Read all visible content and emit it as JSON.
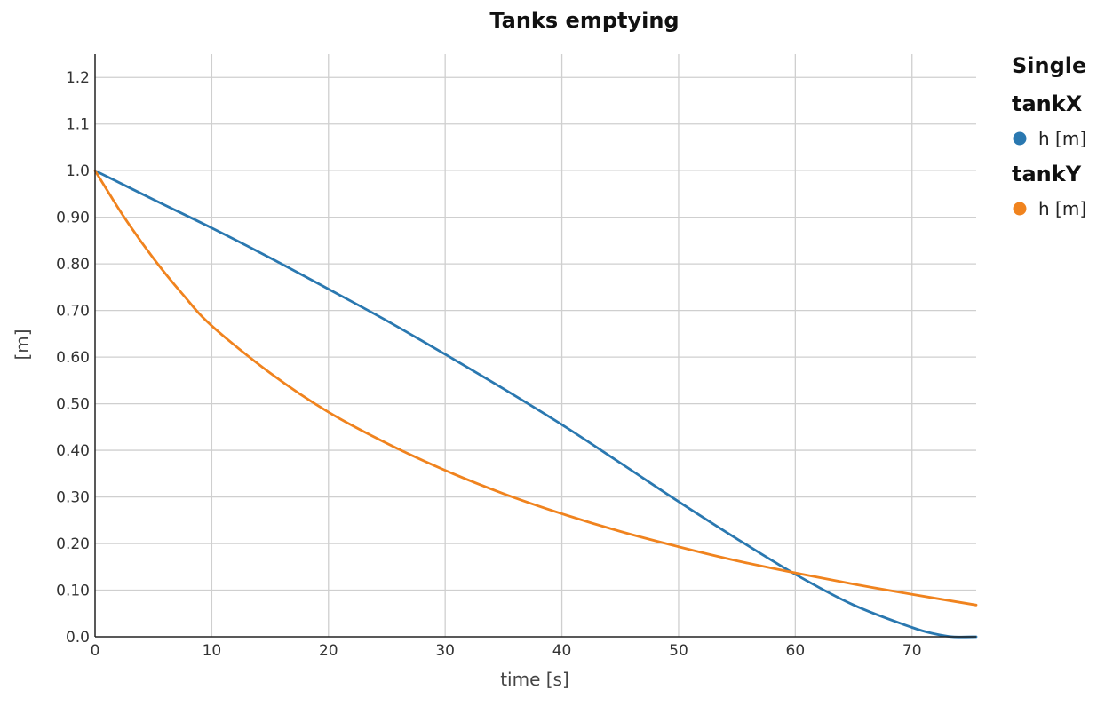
{
  "chart_data": {
    "type": "line",
    "title": "Tanks emptying",
    "xlabel": "time [s]",
    "ylabel": "[m]",
    "xlim": [
      0,
      75.5
    ],
    "ylim": [
      0,
      1.25
    ],
    "x_ticks": [
      0,
      10,
      20,
      30,
      40,
      50,
      60,
      70
    ],
    "x_tick_labels": [
      "0",
      "10",
      "20",
      "30",
      "40",
      "50",
      "60",
      "70"
    ],
    "y_ticks": [
      0,
      0.1,
      0.2,
      0.3,
      0.4,
      0.5,
      0.6,
      0.7,
      0.8,
      0.9,
      1.0,
      1.1,
      1.2
    ],
    "y_tick_labels": [
      "0.0",
      "0.10",
      "0.20",
      "0.30",
      "0.40",
      "0.50",
      "0.60",
      "0.70",
      "0.80",
      "0.90",
      "1.0",
      "1.1",
      "1.2"
    ],
    "grid": true,
    "legend": {
      "placement": "right",
      "title": "Single",
      "groups": [
        {
          "title": "tankX",
          "items": [
            {
              "label": "h [m]",
              "series_index": 0
            }
          ]
        },
        {
          "title": "tankY",
          "items": [
            {
              "label": "h [m]",
              "series_index": 1
            }
          ]
        }
      ]
    },
    "series": [
      {
        "group": "tankX",
        "color": "#2a78b0",
        "x": [
          0,
          5,
          10,
          15,
          20,
          25,
          30,
          35,
          40,
          45,
          50,
          55,
          60,
          65,
          70,
          72,
          73.5,
          75.5
        ],
        "y": [
          1.0,
          0.938,
          0.877,
          0.813,
          0.746,
          0.678,
          0.606,
          0.532,
          0.455,
          0.373,
          0.29,
          0.21,
          0.134,
          0.068,
          0.02,
          0.006,
          0.0,
          0.0
        ]
      },
      {
        "group": "tankY",
        "color": "#f0831e",
        "x": [
          0,
          2.5,
          5,
          7.5,
          10,
          15,
          20,
          25,
          30,
          35,
          40,
          45,
          50,
          55,
          60,
          65,
          70,
          75.5
        ],
        "y": [
          1.0,
          0.9,
          0.812,
          0.735,
          0.667,
          0.566,
          0.482,
          0.415,
          0.357,
          0.307,
          0.264,
          0.226,
          0.193,
          0.163,
          0.137,
          0.113,
          0.091,
          0.068
        ]
      }
    ]
  }
}
